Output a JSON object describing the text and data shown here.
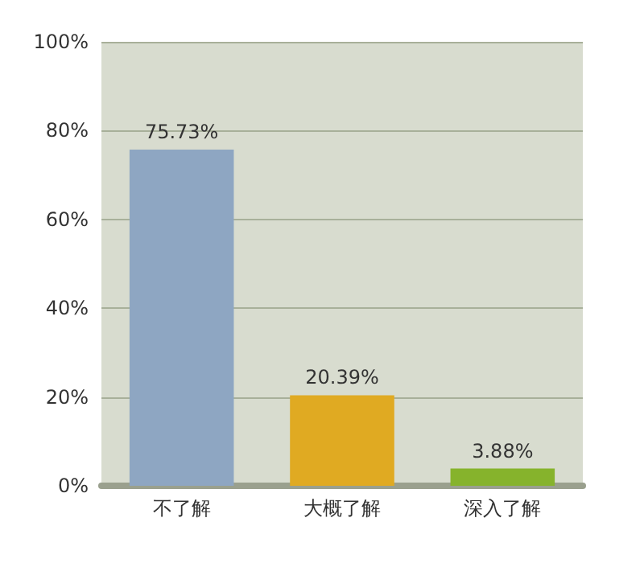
{
  "chart_data": {
    "type": "bar",
    "categories": [
      "不了解",
      "大概了解",
      "深入了解"
    ],
    "values": [
      75.73,
      20.39,
      3.88
    ],
    "colors": [
      "#8ea6c2",
      "#e0aa22",
      "#86b32c"
    ],
    "value_labels": [
      "75.73%",
      "20.39%",
      "3.88%"
    ],
    "ylim": [
      0,
      100
    ],
    "yticks": [
      {
        "value": 0,
        "label": "0%"
      },
      {
        "value": 20,
        "label": "20%"
      },
      {
        "value": 40,
        "label": "40%"
      },
      {
        "value": 60,
        "label": "60%"
      },
      {
        "value": 80,
        "label": "80%"
      },
      {
        "value": 100,
        "label": "100%"
      }
    ],
    "grid": "y"
  }
}
